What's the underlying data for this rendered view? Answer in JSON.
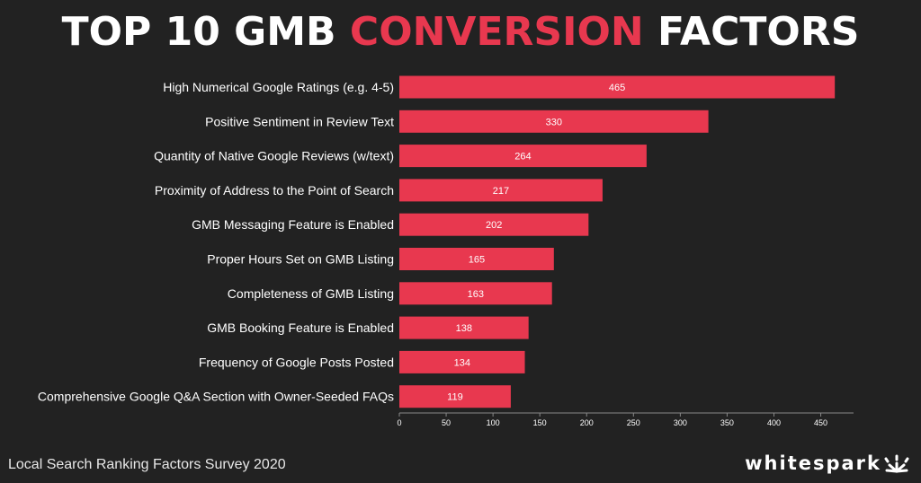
{
  "header": {
    "title_part1": "TOP 10 GMB",
    "title_accent": "CONVERSION",
    "title_part2": "FACTORS"
  },
  "footer": {
    "source": "Local Search Ranking Factors Survey 2020",
    "brand": "whitespark"
  },
  "colors": {
    "background": "#222222",
    "bar": "#e8384f",
    "accent": "#e8384f",
    "text": "#ffffff"
  },
  "logo_icon": "sparkle-burst-icon",
  "chart_data": {
    "type": "bar",
    "orientation": "horizontal",
    "categories": [
      "High Numerical Google Ratings (e.g. 4-5)",
      "Positive Sentiment in Review Text",
      "Quantity of Native Google Reviews (w/text)",
      "Proximity of Address to the Point of Search",
      "GMB Messaging Feature is Enabled",
      "Proper Hours Set on GMB Listing",
      "Completeness of GMB Listing",
      "GMB Booking Feature is Enabled",
      "Frequency of Google Posts Posted",
      "Comprehensive Google Q&A Section with Owner-Seeded FAQs"
    ],
    "values": [
      465,
      330,
      264,
      217,
      202,
      165,
      163,
      138,
      134,
      119
    ],
    "xlim": [
      0,
      485
    ],
    "xticks": [
      0,
      50,
      100,
      150,
      200,
      250,
      300,
      350,
      400,
      450
    ],
    "grid": false,
    "legend": "none",
    "data_labels": true
  }
}
